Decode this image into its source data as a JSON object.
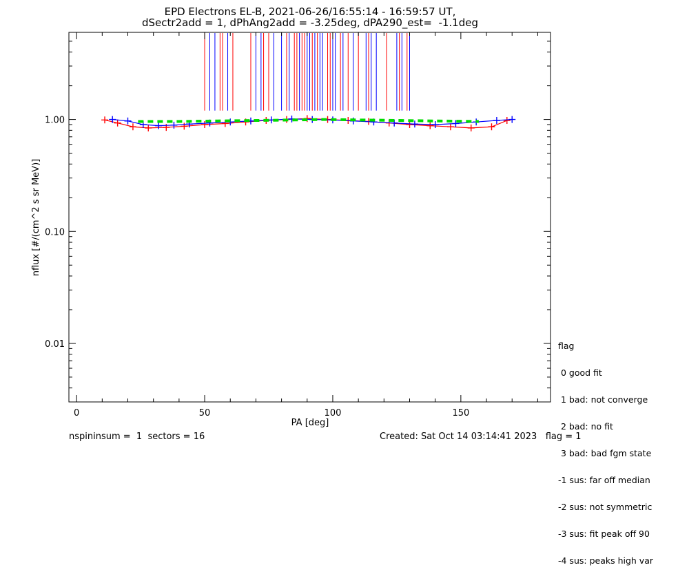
{
  "title": {
    "line1": "EPD Electrons EL-B, 2021-06-26/16:55:14 - 16:59:57 UT,",
    "line2": "dSectr2add = 1, dPhAng2add = -3.25deg, dPA290_est=  -1.1deg"
  },
  "chart_data": {
    "type": "scatter",
    "xlabel": "PA [deg]",
    "ylabel": "nflux [#/(cm^2 s sr MeV)]",
    "xlim": [
      -3,
      185
    ],
    "ylim": [
      0.003,
      6
    ],
    "yscale": "log",
    "xticks": [
      0,
      50,
      100,
      150
    ],
    "xtick_labels": [
      "0",
      "50",
      "100",
      "150"
    ],
    "yticks": [
      0.01,
      0.1,
      1.0
    ],
    "ytick_labels": [
      "0.01",
      "0.10",
      "1.00"
    ],
    "colors": {
      "red": "#ff0000",
      "blue": "#0000ff",
      "green": "#00dd00",
      "black": "#000000"
    },
    "series": [
      {
        "color": "red",
        "x": [
          11,
          16,
          22,
          28,
          35,
          42,
          50,
          58,
          66,
          74,
          82,
          90,
          98,
          106,
          114,
          122,
          130,
          138,
          146,
          154,
          162,
          168
        ],
        "y": [
          0.99,
          0.93,
          0.86,
          0.84,
          0.85,
          0.87,
          0.9,
          0.92,
          0.95,
          0.98,
          1.0,
          1.02,
          1.0,
          0.98,
          0.96,
          0.93,
          0.9,
          0.88,
          0.86,
          0.84,
          0.86,
          0.98
        ]
      },
      {
        "color": "blue",
        "x": [
          14,
          20,
          26,
          32,
          38,
          44,
          52,
          60,
          68,
          76,
          84,
          92,
          100,
          108,
          116,
          124,
          132,
          140,
          148,
          156,
          164,
          170
        ],
        "y": [
          1.0,
          0.97,
          0.9,
          0.88,
          0.89,
          0.91,
          0.93,
          0.95,
          0.97,
          0.99,
          1.01,
          1.0,
          0.99,
          0.97,
          0.95,
          0.93,
          0.91,
          0.9,
          0.92,
          0.95,
          0.98,
          1.0
        ]
      }
    ],
    "fit": {
      "color": "green",
      "x": [
        24,
        40,
        55,
        70,
        85,
        97,
        110,
        125,
        140,
        157
      ],
      "y": [
        0.96,
        0.96,
        0.97,
        0.98,
        0.99,
        1.0,
        0.99,
        0.98,
        0.97,
        0.96
      ]
    },
    "error_bars": {
      "y_low": 1.2,
      "red_x": [
        50,
        56,
        57,
        61,
        68,
        73,
        75,
        82,
        85,
        86,
        88,
        89,
        92,
        94,
        98,
        99,
        103,
        106,
        110,
        114,
        121,
        126,
        129
      ],
      "blue_x": [
        52,
        54,
        59,
        70,
        72,
        77,
        80,
        83,
        87,
        90,
        91,
        93,
        95,
        96,
        100,
        101,
        104,
        108,
        113,
        115,
        117,
        125,
        127,
        130
      ]
    }
  },
  "legend": {
    "title": "flag",
    "items": [
      " 0 good fit",
      " 1 bad: not converge",
      " 2 bad: no fit",
      " 3 bad: bad fgm state",
      "-1 sus: far off median",
      "-2 sus: not symmetric",
      "-3 sus: fit peak off 90",
      "-4 sus: peaks high var"
    ]
  },
  "footer": {
    "left": "nspininsum =  1  sectors = 16",
    "right": "Created: Sat Oct 14 03:14:41 2023   flag = 1"
  }
}
